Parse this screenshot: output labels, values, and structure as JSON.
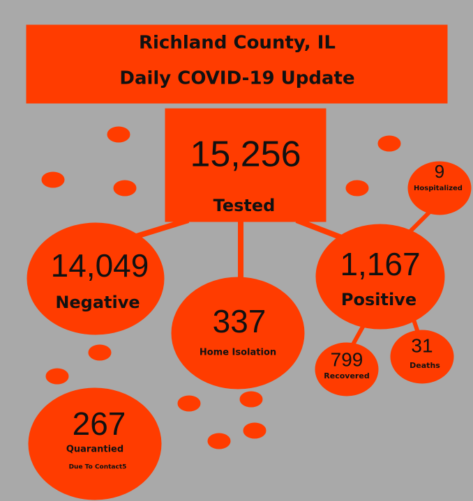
{
  "header": {
    "line1": "Richland County, IL",
    "line2": "Daily COVID-19 Update"
  },
  "nodes": [
    {
      "value": "15,256",
      "label": "Tested"
    },
    {
      "value": "14,049",
      "label": "Negative"
    },
    {
      "value": "337",
      "label": "Home Isolation"
    },
    {
      "value": "1,167",
      "label": "Positive"
    },
    {
      "value": "9",
      "label": "Hospitalized"
    },
    {
      "value": "799",
      "label": "Recovered"
    },
    {
      "value": "31",
      "label": "Deaths"
    },
    {
      "value": "267",
      "label": "Quarantied",
      "sublabel": "Due To Contact5"
    }
  ]
}
